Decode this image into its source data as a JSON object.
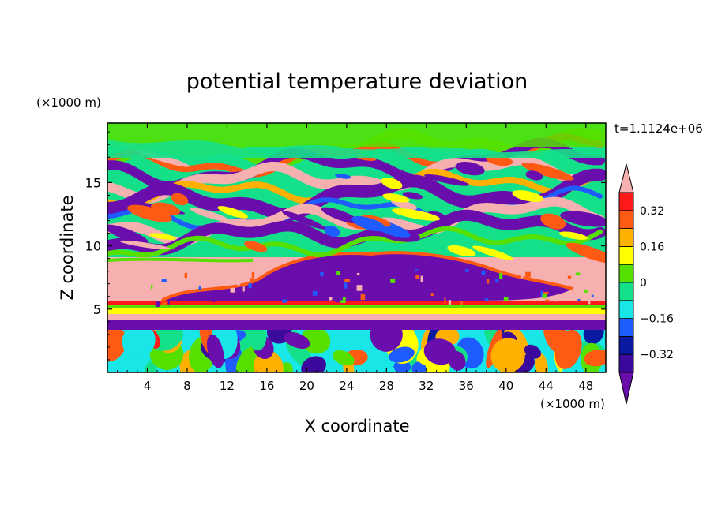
{
  "chart_data": {
    "type": "heatmap",
    "title": "potential temperature deviation",
    "xlabel": "X coordinate",
    "ylabel": "Z coordinate",
    "x_unit_label": "(×1000 m)",
    "y_unit_label": "(×1000 m)",
    "time_label": "t=1.1124e+06",
    "xlim": [
      0,
      50
    ],
    "ylim": [
      0,
      19.7
    ],
    "x_ticks": [
      4,
      8,
      12,
      16,
      20,
      24,
      28,
      32,
      36,
      40,
      44,
      48
    ],
    "y_ticks": [
      5,
      10,
      15
    ],
    "colorbar": {
      "levels": [
        -0.4,
        -0.32,
        -0.24,
        -0.16,
        -0.08,
        0,
        0.08,
        0.16,
        0.24,
        0.32,
        0.4
      ],
      "colors": [
        "#6a0dad",
        "#3b0a9c",
        "#0a1aa0",
        "#1e5cff",
        "#19e6e6",
        "#15e08a",
        "#55e000",
        "#ffff00",
        "#ffb000",
        "#ff5a14",
        "#ff1a1a",
        "#f7b0b0"
      ],
      "labels": [
        "0.32",
        "0.16",
        "0",
        "−0.16",
        "−0.32"
      ],
      "label_values": [
        0.32,
        0.16,
        0,
        -0.16,
        -0.32
      ],
      "extend": "both"
    },
    "field_description": [
      {
        "z_range": [
          0,
          3.5
        ],
        "pattern": "turbulent small-scale cells, mixed positive and negative"
      },
      {
        "z_range": [
          3.5,
          5.5
        ],
        "pattern": "alternating layered bands"
      },
      {
        "z_range": [
          5.5,
          9.5
        ],
        "pattern": "strong positive (pink) on flanks, strong negative core in middle"
      },
      {
        "z_range": [
          9.5,
          18
        ],
        "pattern": "tilted wave-like bands of positive and negative"
      },
      {
        "z_range": [
          18,
          19.7
        ],
        "pattern": "weak, near zero (green)"
      }
    ]
  }
}
